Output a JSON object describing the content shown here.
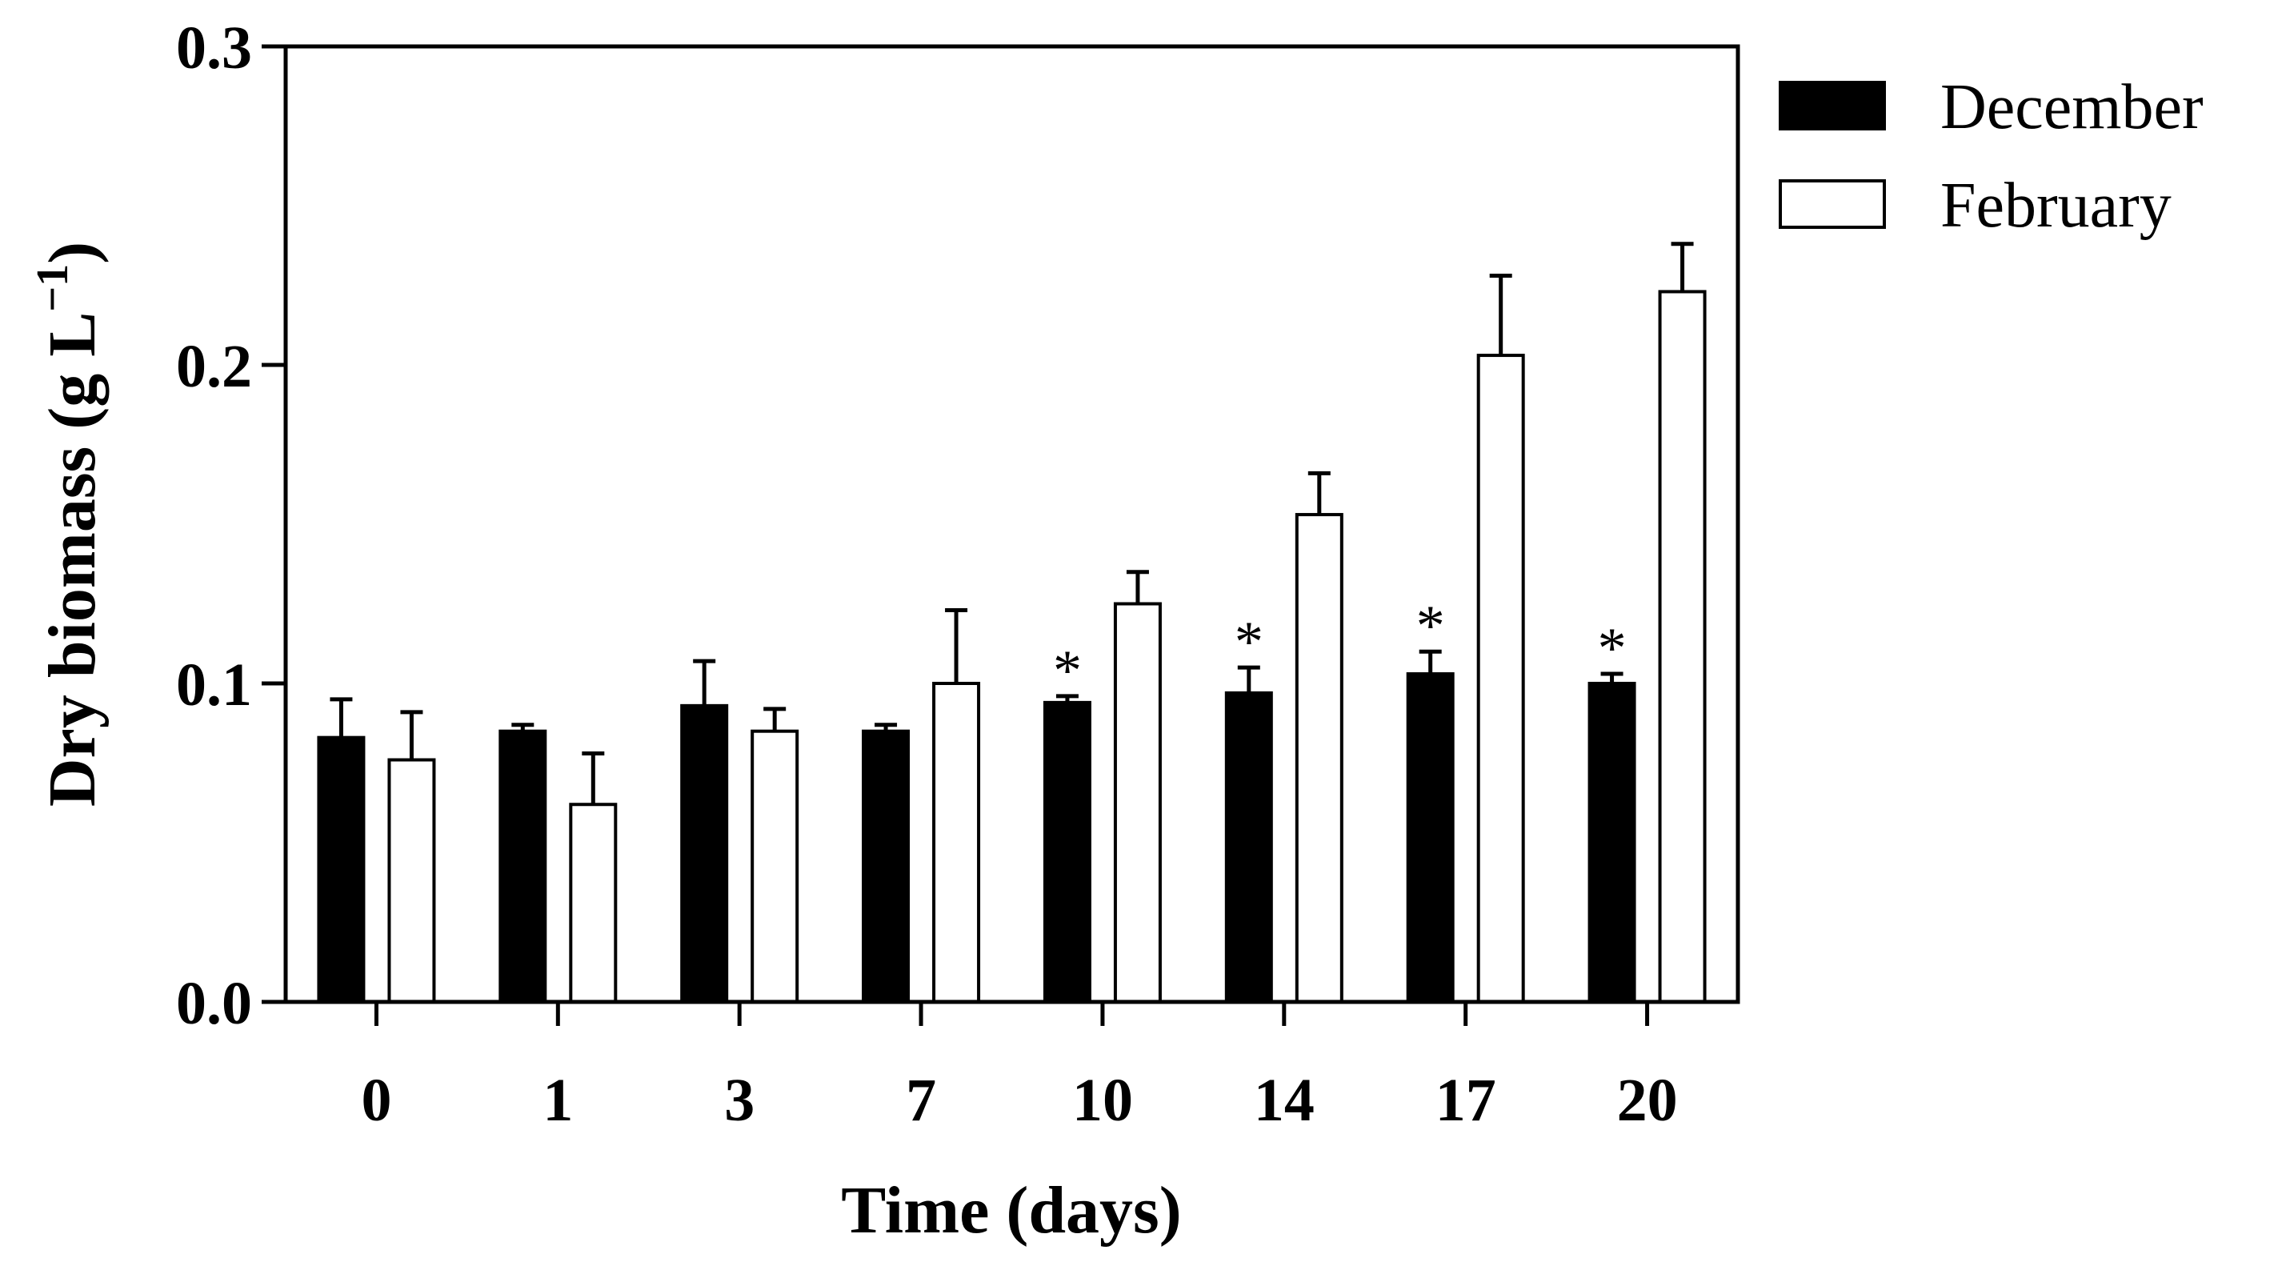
{
  "chart_data": {
    "type": "bar",
    "xlabel": "Time (days)",
    "ylabel_main": "Dry biomass (g L",
    "ylabel_sup": "−1",
    "ylabel_close": ")",
    "ylim": [
      0,
      0.3
    ],
    "yticks": [
      "0.0",
      "0.1",
      "0.2",
      "0.3"
    ],
    "ytick_values": [
      0,
      0.1,
      0.2,
      0.3
    ],
    "categories": [
      "0",
      "1",
      "3",
      "7",
      "10",
      "14",
      "17",
      "20"
    ],
    "series": [
      {
        "name": "December",
        "fill": "#000000",
        "values": [
          0.083,
          0.085,
          0.093,
          0.085,
          0.094,
          0.097,
          0.103,
          0.1
        ],
        "errors": [
          0.012,
          0.002,
          0.014,
          0.002,
          0.002,
          0.008,
          0.007,
          0.003
        ]
      },
      {
        "name": "February",
        "fill": "#ffffff",
        "values": [
          0.076,
          0.062,
          0.085,
          0.1,
          0.125,
          0.153,
          0.203,
          0.223
        ],
        "errors": [
          0.015,
          0.016,
          0.007,
          0.023,
          0.01,
          0.013,
          0.025,
          0.015
        ]
      }
    ],
    "significance_marker": "*",
    "significant_indices": [
      4,
      5,
      6,
      7
    ],
    "legend_position": "top-right, outside plot"
  }
}
